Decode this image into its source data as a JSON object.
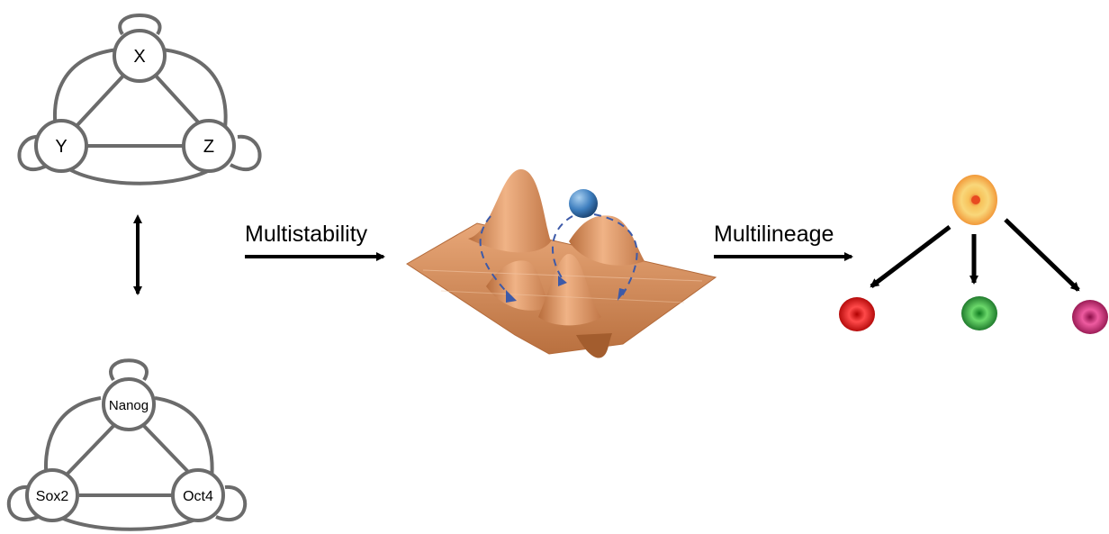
{
  "top_network": {
    "nodes": [
      {
        "id": "top",
        "label": "X"
      },
      {
        "id": "left",
        "label": "Y"
      },
      {
        "id": "right",
        "label": "Z"
      }
    ]
  },
  "bottom_network": {
    "nodes": [
      {
        "id": "top",
        "label": "Nanog"
      },
      {
        "id": "left",
        "label": "Sox2"
      },
      {
        "id": "right",
        "label": "Oct4"
      }
    ]
  },
  "captions": {
    "multistability": "Multistability",
    "multilineage": "Multilineage"
  },
  "colors": {
    "network_stroke": "#6b6b6b",
    "landscape": "#cf8b5c",
    "ball": "#3f7fbf",
    "path_dash": "#3d5aa8",
    "stem_cell": "#f2a33a",
    "cell_red": "#d81e1e",
    "cell_green": "#26a33a",
    "cell_magenta": "#c8236e"
  }
}
